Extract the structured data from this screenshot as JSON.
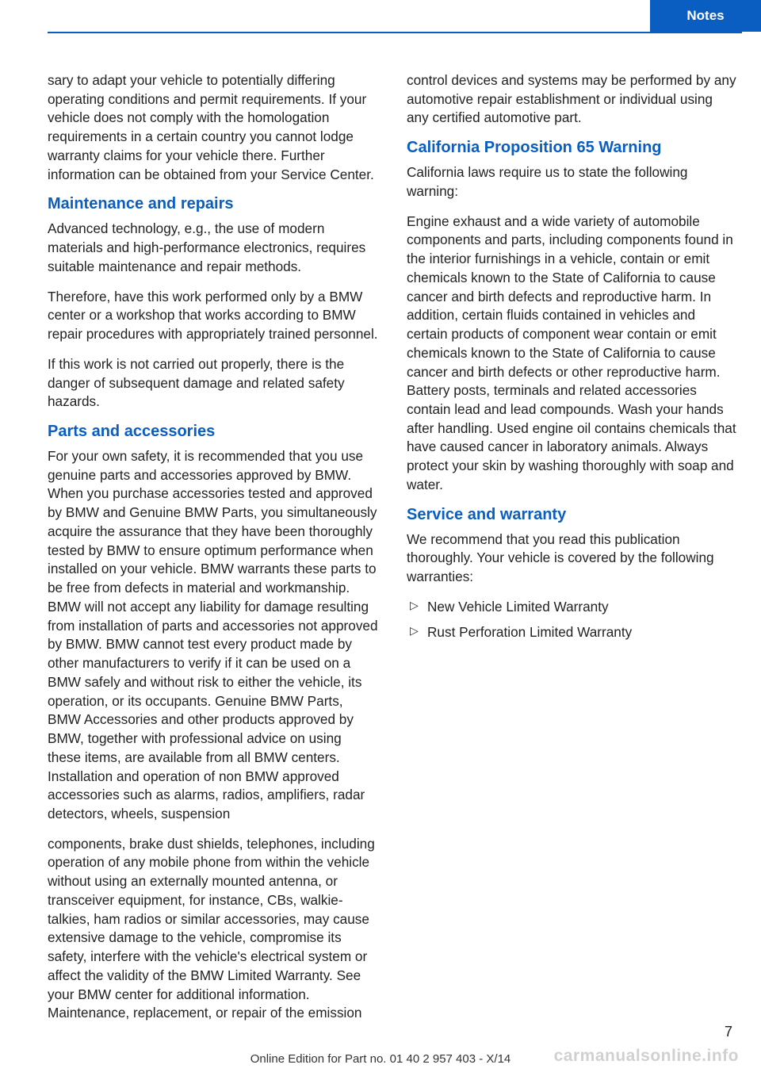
{
  "header": {
    "tab_label": "Notes"
  },
  "left_column": {
    "intro_continuation": "sary to adapt your vehicle to potentially differ­ing operating conditions and permit requirements. If your vehicle does not comply with the homologation requirements in a cer­tain country you cannot lodge warranty claims for your vehicle there. Further information can be obtained from your Service Center.",
    "maintenance": {
      "heading": "Maintenance and repairs",
      "p1": "Advanced technology, e.g., the use of modern materials and high-performance electronics, requires suitable maintenance and repair methods.",
      "p2": "Therefore, have this work performed only by a BMW center or a workshop that works accord­ing to BMW repair procedures with appropri­ately trained personnel.",
      "p3": "If this work is not carried out properly, there is the danger of subsequent damage and related safety hazards."
    },
    "parts": {
      "heading": "Parts and accessories",
      "p1": "For your own safety, it is recommended that you use genuine parts and accessories ap­proved by BMW. When you purchase accesso­ries tested and approved by BMW and Genu­ine BMW Parts, you simultaneously acquire the assurance that they have been thoroughly tested by BMW to ensure optimum perform­ance when installed on your vehicle. BMW warrants these parts to be free from defects in material and workmanship. BMW will not ac­cept any liability for damage resulting from in­stallation of parts and accessories not ap­proved by BMW. BMW cannot test every product made by other manufacturers to verify if it can be used on a BMW safely and without risk to either the vehicle, its operation, or its occupants. Genuine BMW Parts, BMW Acces­sories and other products approved by BMW, together with professional advice on using these items, are available from all BMW cen­ters. Installation and operation of non BMW approved accessories such as alarms, radios, amplifiers, radar detectors, wheels, suspension"
    }
  },
  "right_column": {
    "parts_continuation": "components, brake dust shields, telephones, including operation of any mobile phone from within the vehicle without using an externally mounted antenna, or transceiver equipment, for instance, CBs, walkie-talkies, ham radios or similar accessories, may cause extensive dam­age to the vehicle, compromise its safety, in­terfere with the vehicle's electrical system or affect the validity of the BMW Limited War­ranty. See your BMW center for additional in­formation. Maintenance, replacement, or repair of the emission control devices and systems may be performed by any automotive repair establishment or individual using any certified automotive part.",
    "california": {
      "heading": "California Proposition 65 Warning",
      "p1": "California laws require us to state the following warning:",
      "p2": "Engine exhaust and a wide variety of automo­bile components and parts, including compo­nents found in the interior furnishings in a vehi­cle, contain or emit chemicals known to the State of California to cause cancer and birth defects and reproductive harm. In addition, certain fluids contained in vehicles and certain products of component wear contain or emit chemicals known to the State of California to cause cancer and birth defects or other repro­ductive harm. Battery posts, terminals and re­lated accessories contain lead and lead com­pounds. Wash your hands after handling. Used engine oil contains chemicals that have caused cancer in laboratory animals. Always protect your skin by washing thoroughly with soap and water."
    },
    "service": {
      "heading": "Service and warranty",
      "p1": "We recommend that you read this publication thoroughly. Your vehicle is covered by the fol­lowing warranties:",
      "warranties": [
        "New Vehicle Limited Warranty",
        "Rust Perforation Limited Warranty"
      ]
    }
  },
  "footer": {
    "text": "Online Edition for Part no. 01 40 2 957 403 - X/14",
    "page_number": "7",
    "watermark": "carmanualsonline.info"
  },
  "colors": {
    "brand_blue": "#0a5dc1",
    "text": "#222222",
    "background": "#ffffff"
  }
}
